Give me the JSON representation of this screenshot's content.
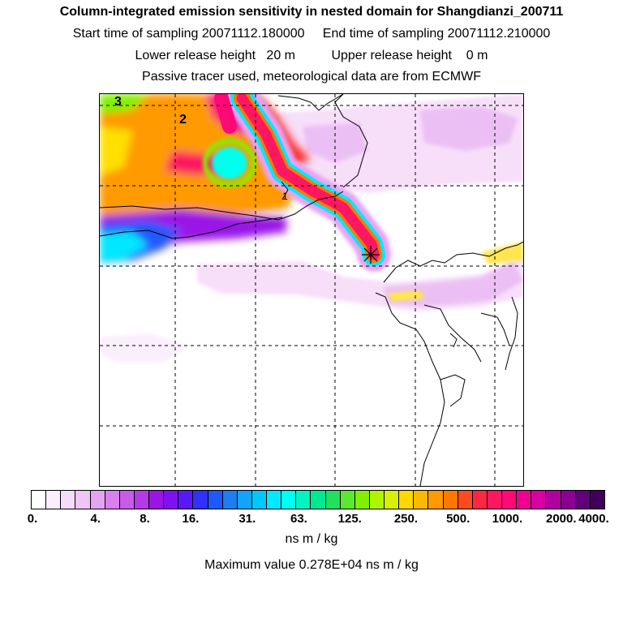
{
  "header": {
    "title": "Column-integrated emission sensitivity in nested domain for Shangdianzi_200711",
    "start_label": "Start time of sampling",
    "start_value": "20071112.180000",
    "end_label": "End time of sampling",
    "end_value": "20071112.210000",
    "lower_label": "Lower release height",
    "lower_value": "20 m",
    "upper_label": "Upper release height",
    "upper_value": "0 m",
    "tracer_line": "Passive tracer used, meteorological data are from ECMWF"
  },
  "map": {
    "contour_labels": [
      "3",
      "2",
      "1"
    ],
    "receptor_icon": "asterisk-icon"
  },
  "colorbar": {
    "ticks": [
      "0.",
      "4.",
      "8.",
      "16.",
      "31.",
      "63.",
      "125.",
      "250.",
      "500.",
      "1000.",
      "2000.",
      "4000."
    ],
    "colors": [
      "#ffffff",
      "#fbeefd",
      "#f6dcfb",
      "#efc4f7",
      "#e4a4f2",
      "#d97fee",
      "#c95be9",
      "#b43ae6",
      "#9a14e6",
      "#8010f0",
      "#5a18f8",
      "#3030ff",
      "#2058ff",
      "#1e7df0",
      "#10a4ff",
      "#00c8ff",
      "#00ebff",
      "#00ffee",
      "#00f5c0",
      "#00e890",
      "#20e060",
      "#5ae830",
      "#80f000",
      "#b0f500",
      "#d8f000",
      "#ffd800",
      "#ffb800",
      "#ff9a00",
      "#ff7800",
      "#ff4a20",
      "#ff2840",
      "#ff1860",
      "#ff0878",
      "#f00090",
      "#d800a0",
      "#b000a0",
      "#8a0090",
      "#60007a",
      "#40005a"
    ],
    "units": "ns m / kg"
  },
  "footer": {
    "max_label": "Maximum value",
    "max_value": "0.278E+04",
    "max_units": "ns m / kg"
  }
}
